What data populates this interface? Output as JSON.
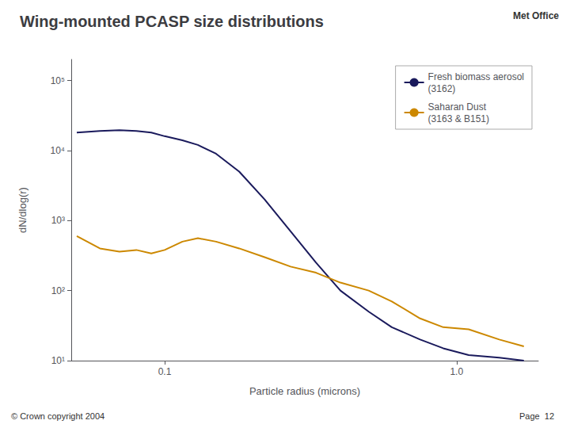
{
  "chart_data": {
    "type": "line",
    "title": "Wing-mounted PCASP size distributions",
    "xlabel": "Particle radius (microns)",
    "ylabel": "dN/dlog(r)",
    "x": [
      0.05,
      0.06,
      0.07,
      0.08,
      0.09,
      0.1,
      0.115,
      0.13,
      0.15,
      0.18,
      0.22,
      0.27,
      0.33,
      0.4,
      0.5,
      0.6,
      0.75,
      0.9,
      1.1,
      1.4,
      1.7
    ],
    "series": [
      {
        "name": "Fresh biomass aerosol\n(3162)",
        "color": "#1a1a5c",
        "values": [
          18000,
          19000,
          19500,
          19000,
          18000,
          16000,
          14000,
          12000,
          9000,
          5000,
          2000,
          700,
          250,
          100,
          50,
          30,
          20,
          15,
          12,
          11,
          10
        ]
      },
      {
        "name": "Saharan Dust\n(3163 & B151)",
        "color": "#cc8800",
        "values": [
          600,
          400,
          360,
          380,
          340,
          380,
          500,
          560,
          500,
          400,
          300,
          220,
          180,
          130,
          100,
          70,
          40,
          30,
          28,
          20,
          16
        ]
      }
    ],
    "xlim": [
      0.047863009232263824,
      1.9054607179632472
    ],
    "ylim": [
      10,
      199526.2314968879
    ],
    "xticks": [
      0.1,
      {
        "value": 1.0,
        "label": "1.0"
      }
    ],
    "yticks": [
      {
        "value": 10,
        "label": "10¹"
      },
      {
        "value": 100,
        "label": "10²"
      },
      {
        "value": 1000,
        "label": "10³"
      },
      {
        "value": 10000,
        "label": "10⁴"
      },
      {
        "value": 100000,
        "label": "10⁵"
      }
    ],
    "log": true,
    "grid": false,
    "legend": "upper right",
    "annotations": [
      "Met Office",
      "© Crown copyright 2004",
      "Page  12"
    ]
  }
}
